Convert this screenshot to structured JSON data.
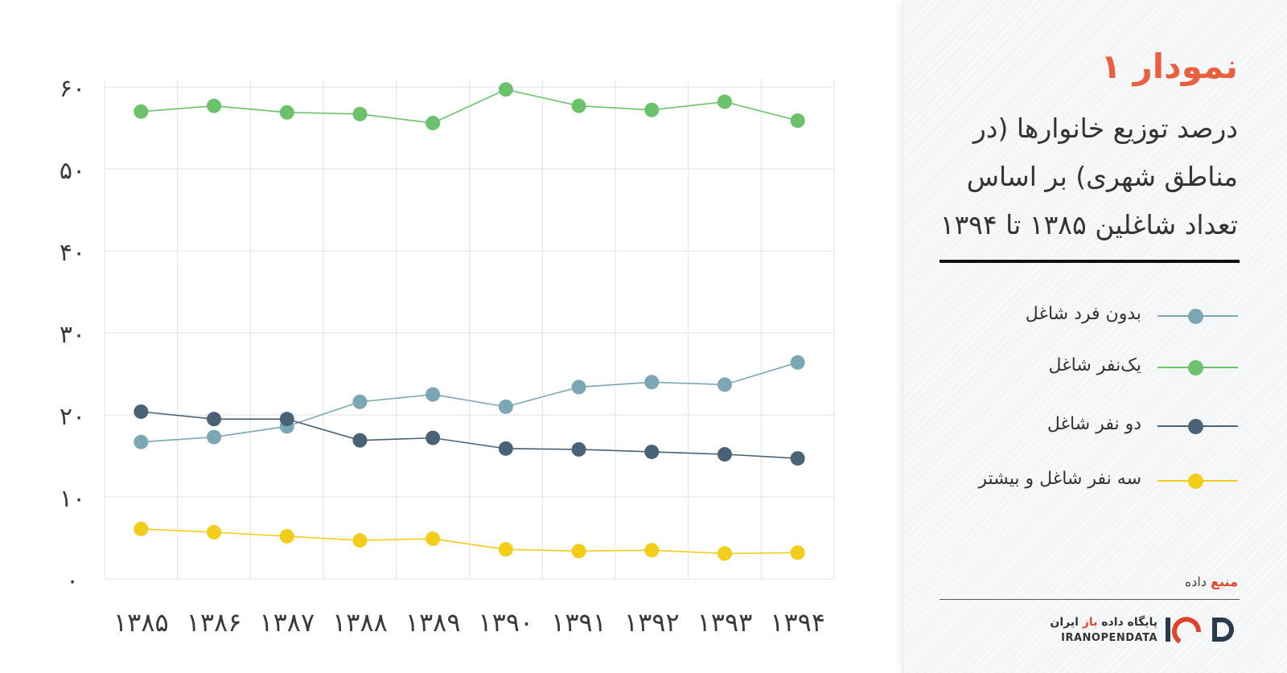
{
  "chart_data": {
    "type": "line",
    "categories": [
      "۱۳۸۵",
      "۱۳۸۶",
      "۱۳۸۷",
      "۱۳۸۸",
      "۱۳۸۹",
      "۱۳۹۰",
      "۱۳۹۱",
      "۱۳۹۲",
      "۱۳۹۳",
      "۱۳۹۴"
    ],
    "yticks": [
      0,
      10,
      20,
      30,
      40,
      50,
      60
    ],
    "ytick_labels": [
      "۰",
      "۱۰",
      "۲۰",
      "۳۰",
      "۴۰",
      "۵۰",
      "۶۰"
    ],
    "ylim": [
      0,
      61
    ],
    "grid": true,
    "legend_position": "right",
    "series": [
      {
        "name": "بدون فرد شاغل",
        "color": "#7ba6b4",
        "values": [
          16.7,
          17.3,
          18.6,
          21.6,
          22.5,
          21.0,
          23.4,
          24.0,
          23.7,
          26.4
        ]
      },
      {
        "name": "یک‌نفر شاغل",
        "color": "#6cc16b",
        "values": [
          57.0,
          57.7,
          56.9,
          56.7,
          55.6,
          59.7,
          57.7,
          57.2,
          58.2,
          55.9
        ]
      },
      {
        "name": "دو نفر شاغل",
        "color": "#4a6275",
        "values": [
          20.4,
          19.5,
          19.5,
          16.9,
          17.2,
          15.9,
          15.8,
          15.5,
          15.2,
          14.7
        ]
      },
      {
        "name": "سه نفر شاغل و بیشتر",
        "color": "#f3cd1a",
        "values": [
          6.1,
          5.7,
          5.2,
          4.7,
          4.9,
          3.6,
          3.4,
          3.5,
          3.1,
          3.2
        ]
      }
    ]
  },
  "panel": {
    "title": "نمودار ۱",
    "subtitle": "درصد توزیع خانوارها (در مناطق شهری) بر اساس تعداد شاغلین ۱۳۸۵ تا ۱۳۹۴",
    "source_key": "منبع",
    "source_value": "داده",
    "brand_fa_pre": "پایگاه داده",
    "brand_fa_accent": "باز",
    "brand_fa_post": "ایران",
    "brand_en": "IRANOPENDATA"
  },
  "colors": {
    "accent": "#ea5f3e",
    "grid": "#dfe3e6"
  }
}
